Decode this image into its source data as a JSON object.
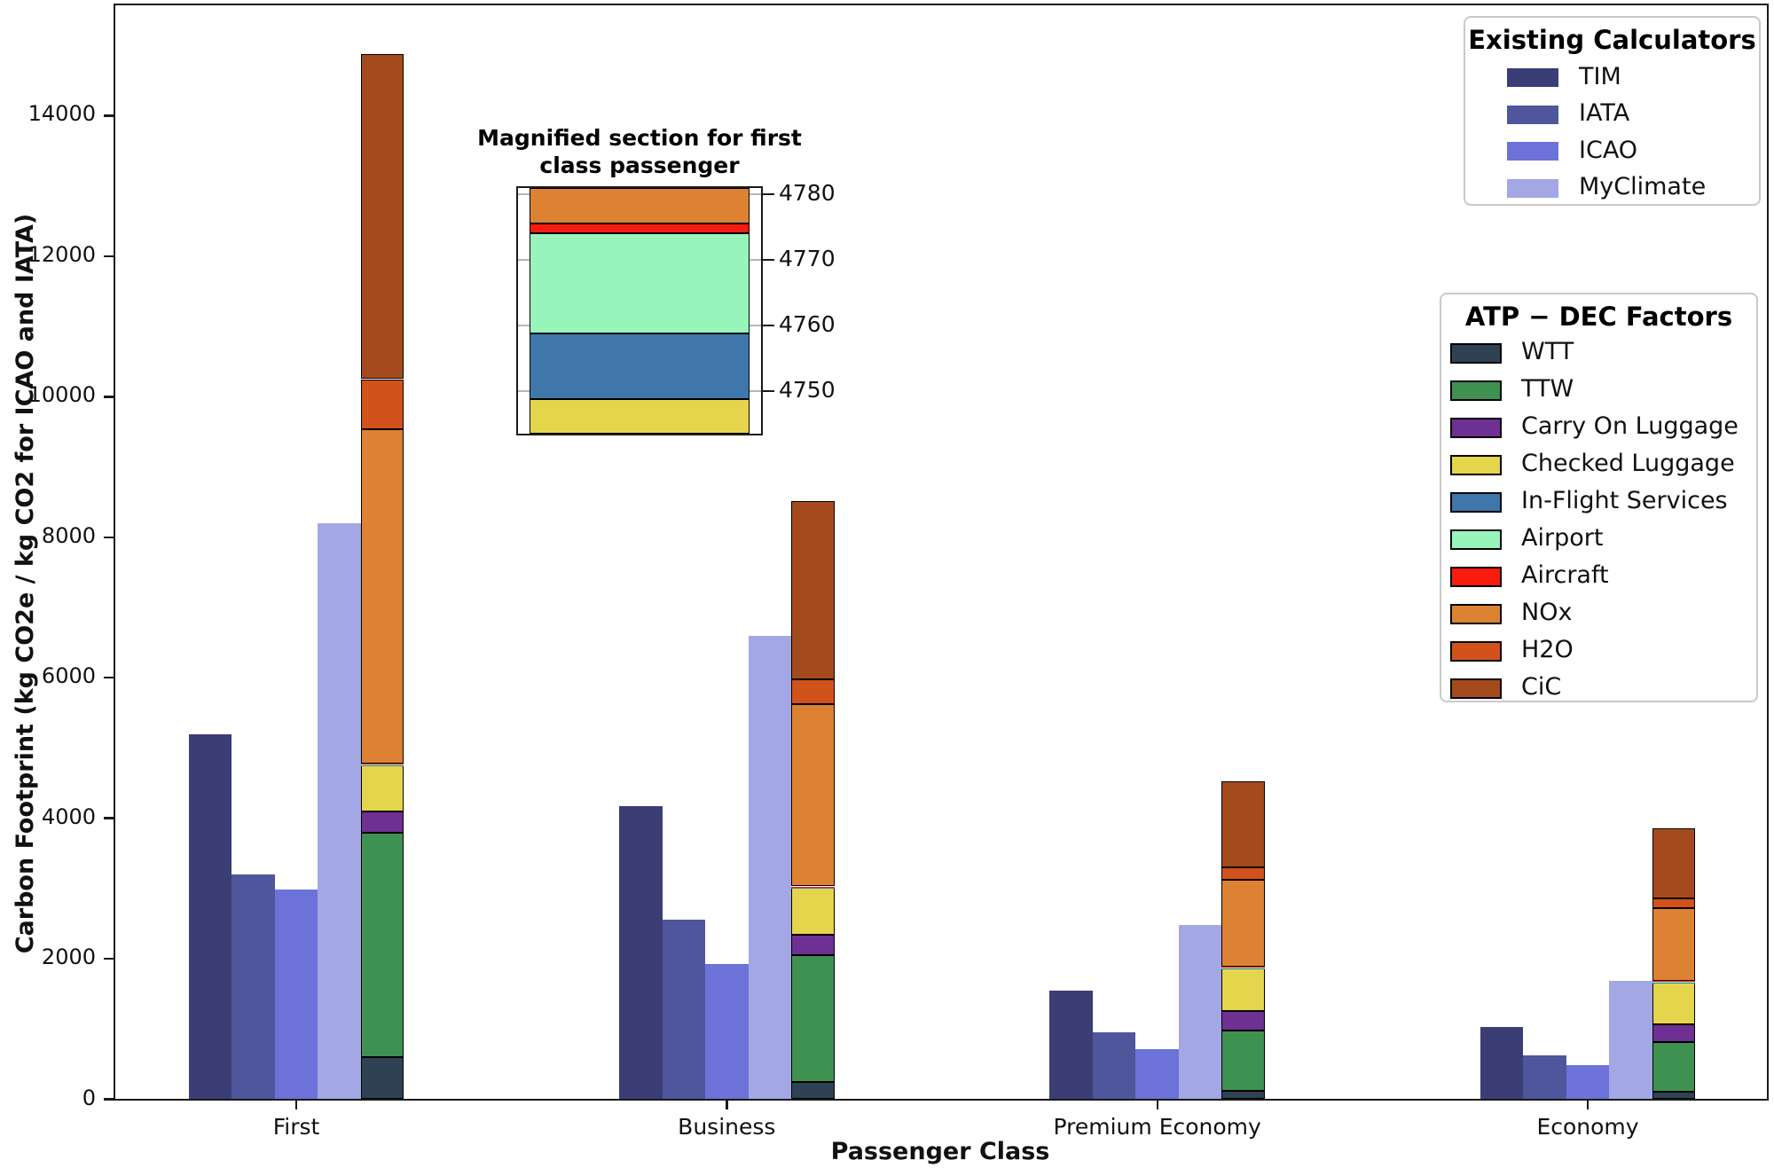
{
  "axes": {
    "ylabel": "Carbon Footprint (kg CO2e / kg CO2 for ICAO and IATA)",
    "xlabel": "Passenger Class",
    "ytick_values": [
      0,
      2000,
      4000,
      6000,
      8000,
      10000,
      12000,
      14000
    ]
  },
  "chart_data": {
    "type": "bar",
    "categories": [
      "First",
      "Business",
      "Premium Economy",
      "Economy"
    ],
    "xlabel": "Passenger Class",
    "ylabel": "Carbon Footprint (kg CO2e / kg CO2 for ICAO and IATA)",
    "ylim": [
      0,
      15550
    ],
    "grid": false,
    "legend_position": "upper right",
    "calculator_series": [
      {
        "name": "TIM",
        "color": "#3b3e75",
        "values": [
          5200,
          4170,
          1550,
          1030
        ]
      },
      {
        "name": "IATA",
        "color": "#4f569c",
        "values": [
          3200,
          2560,
          950,
          620
        ]
      },
      {
        "name": "ICAO",
        "color": "#6c72d8",
        "values": [
          2980,
          1930,
          715,
          480
        ]
      },
      {
        "name": "MyClimate",
        "color": "#a3a7e4",
        "values": [
          8200,
          6600,
          2480,
          1690
        ]
      }
    ],
    "stacked_series": [
      {
        "name": "WTT",
        "color": "#2f4254",
        "values": [
          600,
          240,
          120,
          110
        ]
      },
      {
        "name": "TTW",
        "color": "#3f9152",
        "values": [
          3190,
          1810,
          860,
          700
        ]
      },
      {
        "name": "Carry On Luggage",
        "color": "#6e3092",
        "values": [
          300,
          290,
          280,
          260
        ]
      },
      {
        "name": "Checked Luggage",
        "color": "#e5d54d",
        "values": [
          658,
          665,
          600,
          590
        ]
      },
      {
        "name": "In-Flight Services",
        "color": "#4077ab",
        "values": [
          10,
          8,
          6,
          5
        ]
      },
      {
        "name": "Airport",
        "color": "#97f5bb",
        "values": [
          15.3,
          15,
          15,
          15
        ]
      },
      {
        "name": "Aircraft",
        "color": "#fa1b0f",
        "values": [
          1.6,
          1.5,
          1.5,
          1.5
        ]
      },
      {
        "name": "NOx",
        "color": "#dd8233",
        "values": [
          4765,
          2600,
          1237,
          1034
        ]
      },
      {
        "name": "H2O",
        "color": "#d2521c",
        "values": [
          710,
          350,
          180,
          145
        ]
      },
      {
        "name": "CiC",
        "color": "#a54a1d",
        "values": [
          4630,
          2530,
          1220,
          1000
        ]
      }
    ],
    "stacked_totals": [
      14880,
      8510,
      4520,
      3860
    ]
  },
  "legends": {
    "calculators": {
      "title": "Existing Calculators",
      "items": [
        "TIM",
        "IATA",
        "ICAO",
        "MyClimate"
      ]
    },
    "factors": {
      "title": "ATP − DEC Factors",
      "items": [
        "WTT",
        "TTW",
        "Carry On Luggage",
        "Checked Luggage",
        "In-Flight Services",
        "Airport",
        "Aircraft",
        "NOx",
        "H2O",
        "CiC"
      ]
    }
  },
  "inset": {
    "title_line1": "Magnified section for first",
    "title_line2": "class passenger",
    "ytick_values": [
      4750,
      4760,
      4770,
      4780
    ],
    "view_min": 4743.5,
    "view_max": 4781,
    "segments": [
      {
        "name": "Checked Luggage",
        "from": 4743.5,
        "to": 4748.8
      },
      {
        "name": "In-Flight Services",
        "from": 4748.8,
        "to": 4758.8
      },
      {
        "name": "Airport",
        "from": 4758.8,
        "to": 4774.1
      },
      {
        "name": "Aircraft",
        "from": 4774.1,
        "to": 4775.6
      },
      {
        "name": "NOx",
        "from": 4775.6,
        "to": 4781
      }
    ]
  }
}
